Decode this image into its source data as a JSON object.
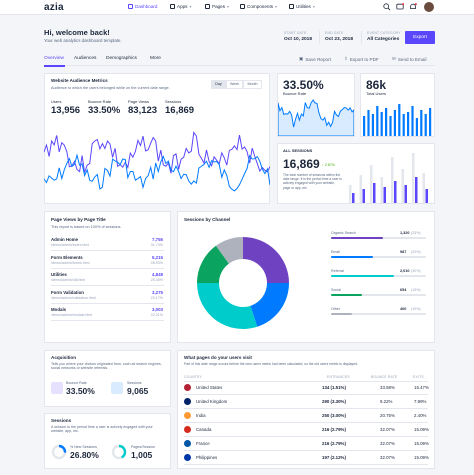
{
  "brand": {
    "logo": "azia"
  },
  "nav": {
    "items": [
      {
        "label": "Dashboard",
        "active": true
      },
      {
        "label": "Apps"
      },
      {
        "label": "Pages"
      },
      {
        "label": "Components"
      },
      {
        "label": "Utilities"
      }
    ]
  },
  "header": {
    "greeting": "Hi, welcome back!",
    "subtitle": "Your web analytics dashboard template.",
    "start_label": "START DATE",
    "start_value": "Oct 10, 2018",
    "end_label": "END DATE",
    "end_value": "Oct 23, 2018",
    "event_label": "EVENT CATEGORY",
    "event_value": "All Categories",
    "export_label": "Export"
  },
  "tabs": [
    "Overview",
    "Audiences",
    "Demographics",
    "More"
  ],
  "actions": {
    "save": "Save Report",
    "pdf": "Export to PDF",
    "email": "Send to Email"
  },
  "audience": {
    "title": "Website Audience Metrics",
    "desc": "Audience to which the users belonged while on the current date range.",
    "range": [
      "Day",
      "Week",
      "Month"
    ],
    "metrics": [
      {
        "label": "Users",
        "value": "13,956"
      },
      {
        "label": "Bounce Rate",
        "value": "33.50%"
      },
      {
        "label": "Page Views",
        "value": "83,123"
      },
      {
        "label": "Sessions",
        "value": "16,869"
      }
    ],
    "colors": {
      "line1": "#5b47fb",
      "line2": "#007bff"
    }
  },
  "bounce_card": {
    "value": "33.50%",
    "label": "Bounce Rate"
  },
  "users_card": {
    "value": "86k",
    "label": "Total Users"
  },
  "sessions_card": {
    "title": "ALL SESSIONS",
    "value": "16,869",
    "change": "2.87%",
    "desc": "The total number of sessions within the date range. It is the period time a user is actively engaged with your website, page or app, etc"
  },
  "pages": {
    "title": "Page Views by Page Title",
    "desc": "This report is based on 100% of sessions.",
    "rows": [
      {
        "title": "Admin Home",
        "url": "/demo/admin/index.html",
        "value": "7,755",
        "sub": "31.74%"
      },
      {
        "title": "Form Elements",
        "url": "/demo/admin/forms.html",
        "value": "5,215",
        "sub": "28.53%"
      },
      {
        "title": "Utilities",
        "url": "/demo/admin/util.html",
        "value": "4,848",
        "sub": "25.35%"
      },
      {
        "title": "Form Validation",
        "url": "/demo/admin/validation.html",
        "value": "3,275",
        "sub": "23.17%"
      },
      {
        "title": "Modals",
        "url": "/demo/admin/modals.html",
        "value": "3,003",
        "sub": "22.21%"
      }
    ]
  },
  "channel": {
    "title": "Sessions by Channel",
    "rows": [
      {
        "name": "Organic Search",
        "value": "1,320",
        "pct": "(25%)",
        "frac": 0.25,
        "color": "#6f42c1"
      },
      {
        "name": "Email",
        "value": "987",
        "pct": "(20%)",
        "frac": 0.2,
        "color": "#007bff"
      },
      {
        "name": "Referral",
        "value": "2,010",
        "pct": "(30%)",
        "frac": 0.3,
        "color": "#00cccc"
      },
      {
        "name": "Social",
        "value": "654",
        "pct": "(15%)",
        "frac": 0.15,
        "color": "#0ba360"
      },
      {
        "name": "Other",
        "value": "400",
        "pct": "(10%)",
        "frac": 0.1,
        "color": "#adb2bd"
      }
    ]
  },
  "acquisition": {
    "title": "Acquisition",
    "desc": "Tells you where your visitors originated from, such as search engines, social networks or website referrals.",
    "items": [
      {
        "label": "Bounce Rate",
        "value": "33.50%"
      },
      {
        "label": "Sessions",
        "value": "9,065"
      }
    ]
  },
  "sessions_small": {
    "title": "Sessions",
    "desc": "A session is the period time a user is actively engaged with your website, app, etc.",
    "items": [
      {
        "label": "% New Sessions",
        "value": "26.80%"
      },
      {
        "label": "Pages/Session",
        "value": "1,005"
      }
    ]
  },
  "countries": {
    "title": "What pages do your users visit",
    "desc": "Part of this date range occurs before the new users metric had been calculated, so the old users metric is displayed.",
    "headers": [
      "COUNTRY",
      "ENTRANCES",
      "BOUNCE RATE",
      "EXITS"
    ],
    "rows": [
      {
        "country": "United States",
        "entrances": "134 (1.51%)",
        "bounce": "33.58%",
        "exits": "15.47%"
      },
      {
        "country": "United Kingdom",
        "entrances": "290 (3.30%)",
        "bounce": "9.22%",
        "exits": "7.99%"
      },
      {
        "country": "India",
        "entrances": "250 (3.00%)",
        "bounce": "20.75%",
        "exits": "2.40%"
      },
      {
        "country": "Canada",
        "entrances": "216 (2.79%)",
        "bounce": "32.07%",
        "exits": "15.09%"
      },
      {
        "country": "France",
        "entrances": "216 (2.79%)",
        "bounce": "32.07%",
        "exits": "15.09%"
      },
      {
        "country": "Philippines",
        "entrances": "197 (2.12%)",
        "bounce": "32.07%",
        "exits": "15.09%"
      }
    ]
  }
}
